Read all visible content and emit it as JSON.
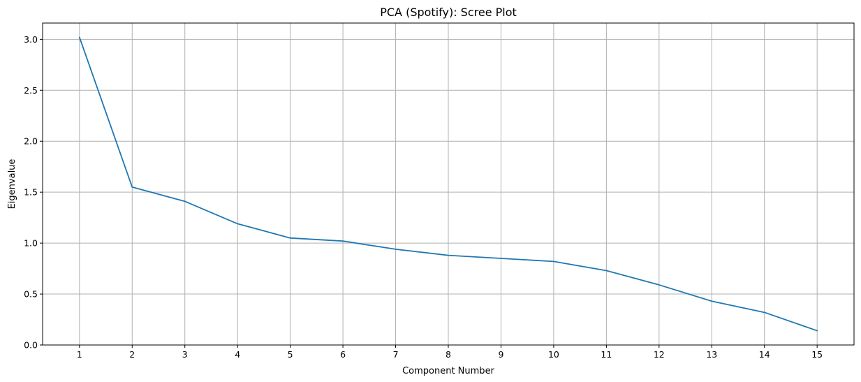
{
  "chart_data": {
    "type": "line",
    "title": "PCA (Spotify): Scree Plot",
    "xlabel": "Component Number",
    "ylabel": "Eigenvalue",
    "x": [
      1,
      2,
      3,
      4,
      5,
      6,
      7,
      8,
      9,
      10,
      11,
      12,
      13,
      14,
      15
    ],
    "series": [
      {
        "values": [
          3.02,
          1.55,
          1.41,
          1.19,
          1.05,
          1.02,
          0.94,
          0.88,
          0.85,
          0.82,
          0.73,
          0.59,
          0.43,
          0.32,
          0.14
        ],
        "color": "#1f77b4"
      }
    ],
    "xticks": [
      "1",
      "2",
      "3",
      "4",
      "5",
      "6",
      "7",
      "8",
      "9",
      "10",
      "11",
      "12",
      "13",
      "14",
      "15"
    ],
    "yticks": [
      "0.0",
      "0.5",
      "1.0",
      "1.5",
      "2.0",
      "2.5",
      "3.0"
    ],
    "xlim": [
      0.3,
      15.7
    ],
    "ylim": [
      0.0,
      3.16
    ],
    "grid": true,
    "legend": false
  }
}
